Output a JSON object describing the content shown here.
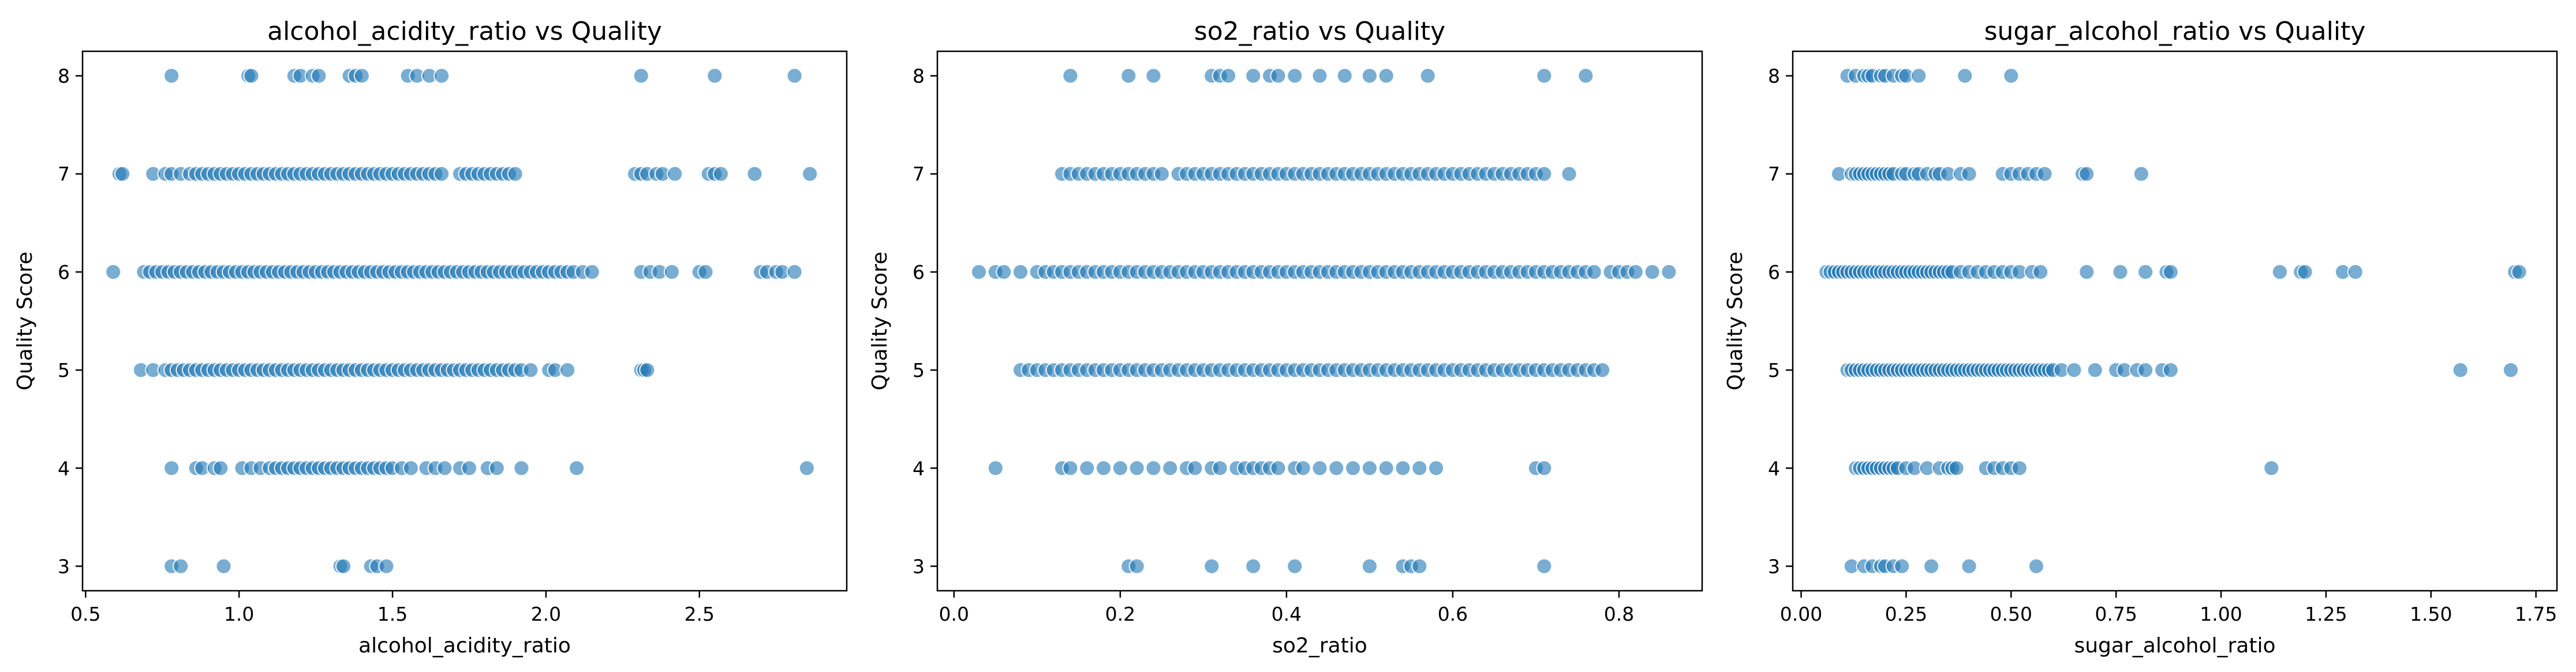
{
  "chart_data": [
    {
      "type": "scatter",
      "title": "alcohol_acidity_ratio vs Quality",
      "xlabel": "alcohol_acidity_ratio",
      "ylabel": "Quality Score",
      "xlim": [
        0.49,
        2.98
      ],
      "ylim": [
        2.75,
        8.25
      ],
      "xticks": [
        0.5,
        1.0,
        1.5,
        2.0,
        2.5
      ],
      "xtick_labels": [
        "0.5",
        "1.0",
        "1.5",
        "2.0",
        "2.5"
      ],
      "yticks": [
        3,
        4,
        5,
        6,
        7,
        8
      ],
      "ytick_labels": [
        "3",
        "4",
        "5",
        "6",
        "7",
        "8"
      ],
      "grid": false,
      "marker_color": "#1f77b4",
      "series": [
        {
          "y": 8,
          "x": [
            0.78,
            1.03,
            1.04,
            1.18,
            1.2,
            1.24,
            1.26,
            1.36,
            1.38,
            1.4,
            1.55,
            1.58,
            1.62,
            1.66,
            2.31,
            2.55,
            2.81
          ]
        },
        {
          "y": 7,
          "x": [
            0.61,
            0.62,
            0.72,
            0.76,
            0.78,
            0.81,
            0.84,
            0.86,
            0.88,
            0.9,
            0.92,
            0.94,
            0.96,
            0.98,
            1.0,
            1.02,
            1.04,
            1.06,
            1.08,
            1.1,
            1.12,
            1.14,
            1.16,
            1.18,
            1.2,
            1.22,
            1.24,
            1.26,
            1.28,
            1.3,
            1.32,
            1.34,
            1.36,
            1.38,
            1.4,
            1.42,
            1.44,
            1.46,
            1.48,
            1.5,
            1.52,
            1.54,
            1.56,
            1.58,
            1.6,
            1.62,
            1.64,
            1.66,
            1.72,
            1.74,
            1.76,
            1.78,
            1.8,
            1.82,
            1.84,
            1.86,
            1.88,
            1.9,
            2.29,
            2.31,
            2.33,
            2.36,
            2.38,
            2.42,
            2.53,
            2.55,
            2.57,
            2.68,
            2.86
          ]
        },
        {
          "y": 6,
          "x": [
            0.59,
            0.69,
            0.71,
            0.73,
            0.75,
            0.77,
            0.79,
            0.81,
            0.83,
            0.85,
            0.87,
            0.89,
            0.91,
            0.93,
            0.95,
            0.97,
            0.99,
            1.01,
            1.03,
            1.05,
            1.07,
            1.09,
            1.11,
            1.13,
            1.15,
            1.17,
            1.19,
            1.21,
            1.23,
            1.25,
            1.27,
            1.29,
            1.31,
            1.33,
            1.35,
            1.37,
            1.39,
            1.41,
            1.43,
            1.45,
            1.47,
            1.49,
            1.51,
            1.53,
            1.55,
            1.57,
            1.59,
            1.61,
            1.63,
            1.65,
            1.67,
            1.69,
            1.71,
            1.73,
            1.75,
            1.77,
            1.79,
            1.81,
            1.83,
            1.85,
            1.87,
            1.89,
            1.91,
            1.93,
            1.95,
            1.97,
            1.99,
            2.01,
            2.03,
            2.05,
            2.07,
            2.09,
            2.12,
            2.15,
            2.31,
            2.34,
            2.37,
            2.41,
            2.5,
            2.52,
            2.7,
            2.72,
            2.75,
            2.77,
            2.81
          ]
        },
        {
          "y": 5,
          "x": [
            0.68,
            0.72,
            0.76,
            0.78,
            0.8,
            0.82,
            0.84,
            0.86,
            0.88,
            0.9,
            0.92,
            0.94,
            0.96,
            0.98,
            1.0,
            1.02,
            1.04,
            1.06,
            1.08,
            1.1,
            1.12,
            1.14,
            1.16,
            1.18,
            1.2,
            1.22,
            1.24,
            1.26,
            1.28,
            1.3,
            1.32,
            1.34,
            1.36,
            1.38,
            1.4,
            1.42,
            1.44,
            1.46,
            1.48,
            1.5,
            1.52,
            1.54,
            1.56,
            1.58,
            1.6,
            1.62,
            1.64,
            1.66,
            1.68,
            1.7,
            1.72,
            1.74,
            1.76,
            1.78,
            1.8,
            1.82,
            1.84,
            1.86,
            1.88,
            1.9,
            1.92,
            1.95,
            2.01,
            2.03,
            2.07,
            2.31,
            2.32,
            2.33
          ]
        },
        {
          "y": 4,
          "x": [
            0.78,
            0.86,
            0.88,
            0.92,
            0.94,
            1.01,
            1.04,
            1.07,
            1.1,
            1.12,
            1.14,
            1.16,
            1.18,
            1.2,
            1.22,
            1.24,
            1.26,
            1.28,
            1.3,
            1.32,
            1.34,
            1.36,
            1.38,
            1.4,
            1.42,
            1.44,
            1.46,
            1.48,
            1.5,
            1.53,
            1.56,
            1.61,
            1.64,
            1.67,
            1.72,
            1.75,
            1.81,
            1.84,
            1.92,
            2.1,
            2.85
          ]
        },
        {
          "y": 3,
          "x": [
            0.78,
            0.81,
            0.95,
            1.33,
            1.34,
            1.43,
            1.45,
            1.48
          ]
        }
      ]
    },
    {
      "type": "scatter",
      "title": "so2_ratio vs Quality",
      "xlabel": "so2_ratio",
      "ylabel": "Quality Score",
      "xlim": [
        -0.02,
        0.9
      ],
      "ylim": [
        2.75,
        8.25
      ],
      "xticks": [
        0.0,
        0.2,
        0.4,
        0.6,
        0.8
      ],
      "xtick_labels": [
        "0.0",
        "0.2",
        "0.4",
        "0.6",
        "0.8"
      ],
      "yticks": [
        3,
        4,
        5,
        6,
        7,
        8
      ],
      "ytick_labels": [
        "3",
        "4",
        "5",
        "6",
        "7",
        "8"
      ],
      "grid": false,
      "marker_color": "#1f77b4",
      "series": [
        {
          "y": 8,
          "x": [
            0.14,
            0.21,
            0.24,
            0.31,
            0.32,
            0.33,
            0.36,
            0.38,
            0.39,
            0.41,
            0.44,
            0.47,
            0.5,
            0.52,
            0.57,
            0.71,
            0.76
          ]
        },
        {
          "y": 7,
          "x": [
            0.13,
            0.14,
            0.15,
            0.16,
            0.17,
            0.18,
            0.19,
            0.2,
            0.21,
            0.22,
            0.23,
            0.24,
            0.25,
            0.27,
            0.28,
            0.29,
            0.3,
            0.31,
            0.32,
            0.33,
            0.34,
            0.35,
            0.36,
            0.37,
            0.38,
            0.39,
            0.4,
            0.41,
            0.42,
            0.43,
            0.44,
            0.45,
            0.46,
            0.47,
            0.48,
            0.49,
            0.5,
            0.51,
            0.52,
            0.53,
            0.54,
            0.55,
            0.56,
            0.57,
            0.58,
            0.59,
            0.6,
            0.61,
            0.62,
            0.63,
            0.64,
            0.65,
            0.66,
            0.67,
            0.68,
            0.69,
            0.7,
            0.71,
            0.74
          ]
        },
        {
          "y": 6,
          "x": [
            0.03,
            0.05,
            0.06,
            0.08,
            0.1,
            0.11,
            0.12,
            0.13,
            0.14,
            0.15,
            0.16,
            0.17,
            0.18,
            0.19,
            0.2,
            0.21,
            0.22,
            0.23,
            0.24,
            0.25,
            0.26,
            0.27,
            0.28,
            0.29,
            0.3,
            0.31,
            0.32,
            0.33,
            0.34,
            0.35,
            0.36,
            0.37,
            0.38,
            0.39,
            0.4,
            0.41,
            0.42,
            0.43,
            0.44,
            0.45,
            0.46,
            0.47,
            0.48,
            0.49,
            0.5,
            0.51,
            0.52,
            0.53,
            0.54,
            0.55,
            0.56,
            0.57,
            0.58,
            0.59,
            0.6,
            0.61,
            0.62,
            0.63,
            0.64,
            0.65,
            0.66,
            0.67,
            0.68,
            0.69,
            0.7,
            0.71,
            0.72,
            0.73,
            0.74,
            0.75,
            0.76,
            0.77,
            0.79,
            0.8,
            0.81,
            0.82,
            0.84,
            0.86
          ]
        },
        {
          "y": 5,
          "x": [
            0.08,
            0.09,
            0.1,
            0.11,
            0.12,
            0.13,
            0.14,
            0.15,
            0.16,
            0.17,
            0.18,
            0.19,
            0.2,
            0.21,
            0.22,
            0.23,
            0.24,
            0.25,
            0.26,
            0.27,
            0.28,
            0.29,
            0.3,
            0.31,
            0.32,
            0.33,
            0.34,
            0.35,
            0.36,
            0.37,
            0.38,
            0.39,
            0.4,
            0.41,
            0.42,
            0.43,
            0.44,
            0.45,
            0.46,
            0.47,
            0.48,
            0.49,
            0.5,
            0.51,
            0.52,
            0.53,
            0.54,
            0.55,
            0.56,
            0.57,
            0.58,
            0.59,
            0.6,
            0.61,
            0.62,
            0.63,
            0.64,
            0.65,
            0.66,
            0.67,
            0.68,
            0.69,
            0.7,
            0.71,
            0.72,
            0.73,
            0.74,
            0.75,
            0.76,
            0.77,
            0.78
          ]
        },
        {
          "y": 4,
          "x": [
            0.05,
            0.13,
            0.14,
            0.16,
            0.18,
            0.2,
            0.22,
            0.24,
            0.26,
            0.28,
            0.29,
            0.31,
            0.32,
            0.34,
            0.35,
            0.36,
            0.37,
            0.38,
            0.39,
            0.41,
            0.42,
            0.44,
            0.46,
            0.48,
            0.5,
            0.52,
            0.54,
            0.56,
            0.58,
            0.7,
            0.71
          ]
        },
        {
          "y": 3,
          "x": [
            0.21,
            0.22,
            0.31,
            0.36,
            0.41,
            0.5,
            0.54,
            0.55,
            0.56,
            0.71
          ]
        }
      ]
    },
    {
      "type": "scatter",
      "title": "sugar_alcohol_ratio vs Quality",
      "xlabel": "sugar_alcohol_ratio",
      "ylabel": "Quality Score",
      "xlim": [
        -0.02,
        1.8
      ],
      "ylim": [
        2.75,
        8.25
      ],
      "xticks": [
        0.0,
        0.25,
        0.5,
        0.75,
        1.0,
        1.25,
        1.5,
        1.75
      ],
      "xtick_labels": [
        "0.00",
        "0.25",
        "0.50",
        "0.75",
        "1.00",
        "1.25",
        "1.50",
        "1.75"
      ],
      "yticks": [
        3,
        4,
        5,
        6,
        7,
        8
      ],
      "ytick_labels": [
        "3",
        "4",
        "5",
        "6",
        "7",
        "8"
      ],
      "grid": false,
      "marker_color": "#1f77b4",
      "series": [
        {
          "y": 8,
          "x": [
            0.11,
            0.13,
            0.15,
            0.16,
            0.17,
            0.19,
            0.2,
            0.22,
            0.24,
            0.25,
            0.28,
            0.39,
            0.5
          ]
        },
        {
          "y": 7,
          "x": [
            0.09,
            0.12,
            0.13,
            0.14,
            0.15,
            0.16,
            0.17,
            0.18,
            0.19,
            0.2,
            0.21,
            0.22,
            0.24,
            0.25,
            0.27,
            0.28,
            0.3,
            0.32,
            0.33,
            0.35,
            0.38,
            0.4,
            0.48,
            0.5,
            0.52,
            0.54,
            0.56,
            0.58,
            0.67,
            0.68,
            0.81
          ]
        },
        {
          "y": 6,
          "x": [
            0.06,
            0.07,
            0.08,
            0.09,
            0.1,
            0.11,
            0.12,
            0.13,
            0.14,
            0.15,
            0.16,
            0.17,
            0.18,
            0.19,
            0.2,
            0.21,
            0.22,
            0.23,
            0.24,
            0.25,
            0.26,
            0.27,
            0.28,
            0.29,
            0.3,
            0.31,
            0.32,
            0.33,
            0.34,
            0.35,
            0.36,
            0.38,
            0.4,
            0.42,
            0.44,
            0.46,
            0.48,
            0.5,
            0.52,
            0.55,
            0.57,
            0.68,
            0.76,
            0.82,
            0.87,
            0.88,
            1.14,
            1.19,
            1.2,
            1.29,
            1.32,
            1.7,
            1.71
          ]
        },
        {
          "y": 5,
          "x": [
            0.11,
            0.12,
            0.13,
            0.14,
            0.15,
            0.16,
            0.17,
            0.18,
            0.19,
            0.2,
            0.21,
            0.22,
            0.23,
            0.24,
            0.25,
            0.26,
            0.27,
            0.28,
            0.29,
            0.3,
            0.31,
            0.32,
            0.33,
            0.34,
            0.35,
            0.36,
            0.37,
            0.38,
            0.39,
            0.4,
            0.41,
            0.42,
            0.43,
            0.44,
            0.45,
            0.46,
            0.47,
            0.48,
            0.49,
            0.5,
            0.51,
            0.52,
            0.53,
            0.54,
            0.55,
            0.56,
            0.57,
            0.58,
            0.59,
            0.6,
            0.62,
            0.65,
            0.7,
            0.75,
            0.77,
            0.8,
            0.82,
            0.86,
            0.88,
            1.57,
            1.69
          ]
        },
        {
          "y": 4,
          "x": [
            0.13,
            0.14,
            0.15,
            0.16,
            0.17,
            0.18,
            0.19,
            0.2,
            0.21,
            0.22,
            0.23,
            0.25,
            0.27,
            0.3,
            0.33,
            0.35,
            0.36,
            0.37,
            0.44,
            0.46,
            0.48,
            0.5,
            0.52,
            1.12
          ]
        },
        {
          "y": 3,
          "x": [
            0.12,
            0.15,
            0.17,
            0.19,
            0.2,
            0.22,
            0.24,
            0.31,
            0.4,
            0.56
          ]
        }
      ]
    }
  ]
}
